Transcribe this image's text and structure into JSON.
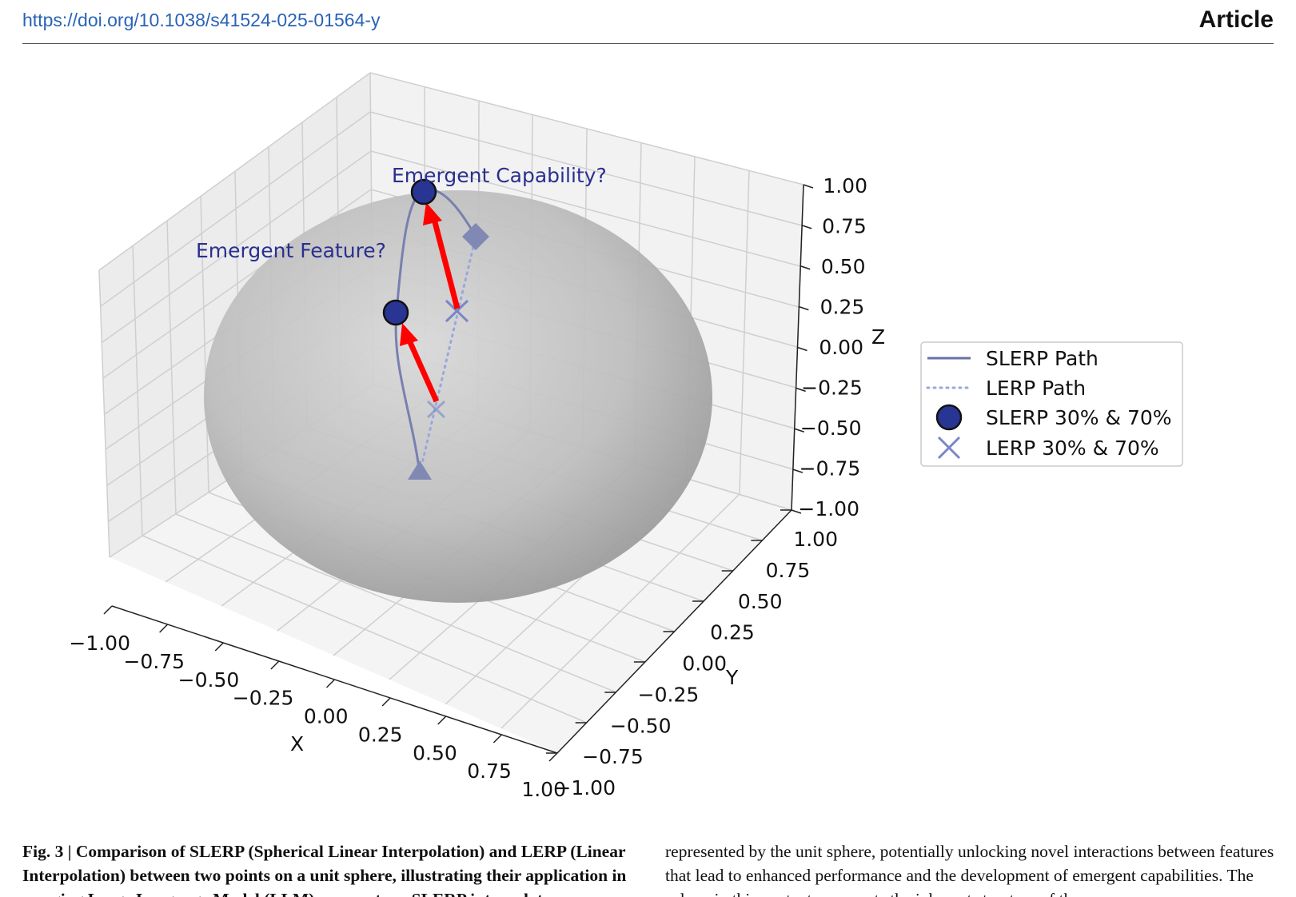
{
  "header": {
    "doi_link": "https://doi.org/10.1038/s41524-025-01564-y",
    "section_label": "Article"
  },
  "colors": {
    "slerp_path": "#7880b0",
    "lerp_path": "#9aa7dc",
    "slerp_marker": "#283593",
    "lerp_marker": "#7a86c7",
    "arrow": "#ff0000",
    "annotation_text": "#2b2f8f",
    "sphere": "#b5b5b5"
  },
  "chart_data": {
    "type": "scatter",
    "projection": "3d",
    "xlabel": "X",
    "ylabel": "Y",
    "zlabel": "Z",
    "xlim": [
      -1,
      1
    ],
    "ylim": [
      -1,
      1
    ],
    "zlim": [
      -1,
      1
    ],
    "xticks": [
      "−1.00",
      "−0.75",
      "−0.50",
      "−0.25",
      "0.00",
      "0.25",
      "0.50",
      "0.75",
      "1.00"
    ],
    "yticks": [
      "−1.00",
      "−0.75",
      "−0.50",
      "−0.25",
      "0.00",
      "0.25",
      "0.50",
      "0.75",
      "1.00"
    ],
    "zticks": [
      "−1.00",
      "−0.75",
      "−0.50",
      "−0.25",
      "0.00",
      "0.25",
      "0.50",
      "0.75",
      "1.00"
    ],
    "grid": true,
    "surface": "unit sphere",
    "start_point": {
      "marker": "triangle",
      "x": 0.3,
      "y": 0.2,
      "z": -0.93
    },
    "end_point": {
      "marker": "diamond",
      "x": 0.4,
      "y": 0.9,
      "z": 0.18
    },
    "series": [
      {
        "name": "SLERP Path",
        "style": "solid line",
        "points": [
          {
            "x": 0.3,
            "y": 0.2,
            "z": -0.93
          },
          {
            "x": 0.38,
            "y": 0.55,
            "z": -0.2
          },
          {
            "x": 0.43,
            "y": 0.82,
            "z": 0.35
          },
          {
            "x": 0.45,
            "y": 0.91,
            "z": 0.25
          },
          {
            "x": 0.4,
            "y": 0.9,
            "z": 0.18
          }
        ]
      },
      {
        "name": "LERP Path",
        "style": "dotted line",
        "points": [
          {
            "x": 0.3,
            "y": 0.2,
            "z": -0.93
          },
          {
            "x": 0.4,
            "y": 0.9,
            "z": 0.18
          }
        ]
      },
      {
        "name": "SLERP 30% & 70%",
        "marker": "circle",
        "points": [
          {
            "x": 0.36,
            "y": 0.48,
            "z": -0.55
          },
          {
            "x": 0.43,
            "y": 0.84,
            "z": 0.1
          }
        ]
      },
      {
        "name": "LERP 30% & 70%",
        "marker": "x",
        "points": [
          {
            "x": 0.33,
            "y": 0.41,
            "z": -0.6
          },
          {
            "x": 0.37,
            "y": 0.69,
            "z": -0.15
          }
        ]
      }
    ],
    "annotations": [
      "Emergent Capability?",
      "Emergent Feature?"
    ],
    "legend_position": "right",
    "legend": [
      "SLERP Path",
      "LERP Path",
      "SLERP 30% & 70%",
      "LERP 30% & 70%"
    ]
  },
  "caption": {
    "label": "Fig. 3 | Comparison of SLERP (Spherical Linear Interpolation) and LERP (Linear Interpolation) between two points on a unit sphere, illustrating their application",
    "continuation": "in merging Large Language Model (LLM) parameters. SLERP interpolates"
  },
  "body_text": "represented by the unit sphere, potentially unlocking novel interactions between features that lead to enhanced performance and the development of emergent capabilities. The sphere in this context represents the inherent structure of the"
}
